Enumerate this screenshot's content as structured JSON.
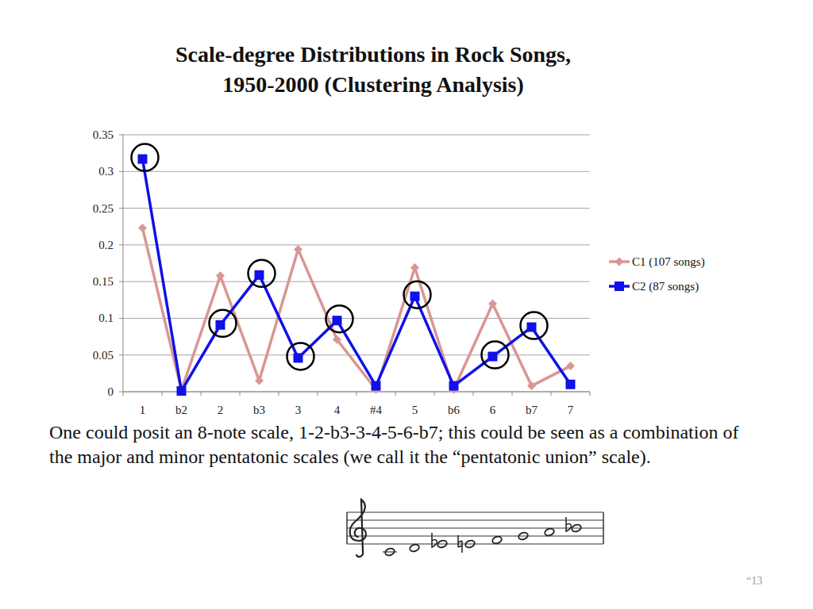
{
  "chart_data": {
    "type": "line",
    "title": "Scale-degree Distributions in Rock Songs,\n1950-2000 (Clustering Analysis)",
    "categories": [
      "1",
      "b2",
      "2",
      "b3",
      "3",
      "4",
      "#4",
      "5",
      "b6",
      "6",
      "b7",
      "7"
    ],
    "series": [
      {
        "name": "C1 (107 songs)",
        "color": "#d99694",
        "marker": "diamond",
        "values": [
          0.223,
          0.002,
          0.158,
          0.015,
          0.194,
          0.071,
          0.003,
          0.169,
          0.003,
          0.12,
          0.008,
          0.035
        ]
      },
      {
        "name": "C2 (87 songs)",
        "color": "#1010e8",
        "marker": "square",
        "values": [
          0.317,
          0.001,
          0.091,
          0.159,
          0.046,
          0.097,
          0.008,
          0.13,
          0.008,
          0.048,
          0.088,
          0.01
        ],
        "circled": [
          "1",
          "2",
          "b3",
          "3",
          "4",
          "5",
          "6",
          "b7"
        ]
      }
    ],
    "ylim": [
      0,
      0.35
    ],
    "yticks": [
      0,
      0.05,
      0.1,
      0.15,
      0.2,
      0.25,
      0.3,
      0.35
    ],
    "grid": true,
    "legend": "right"
  },
  "slide": {
    "caption": "One could posit an 8-note scale, 1-2-b3-3-4-5-6-b7; this could be seen as a combination of the major and minor pentatonic scales (we call it the “pentatonic union” scale).",
    "page_number": "“13"
  }
}
